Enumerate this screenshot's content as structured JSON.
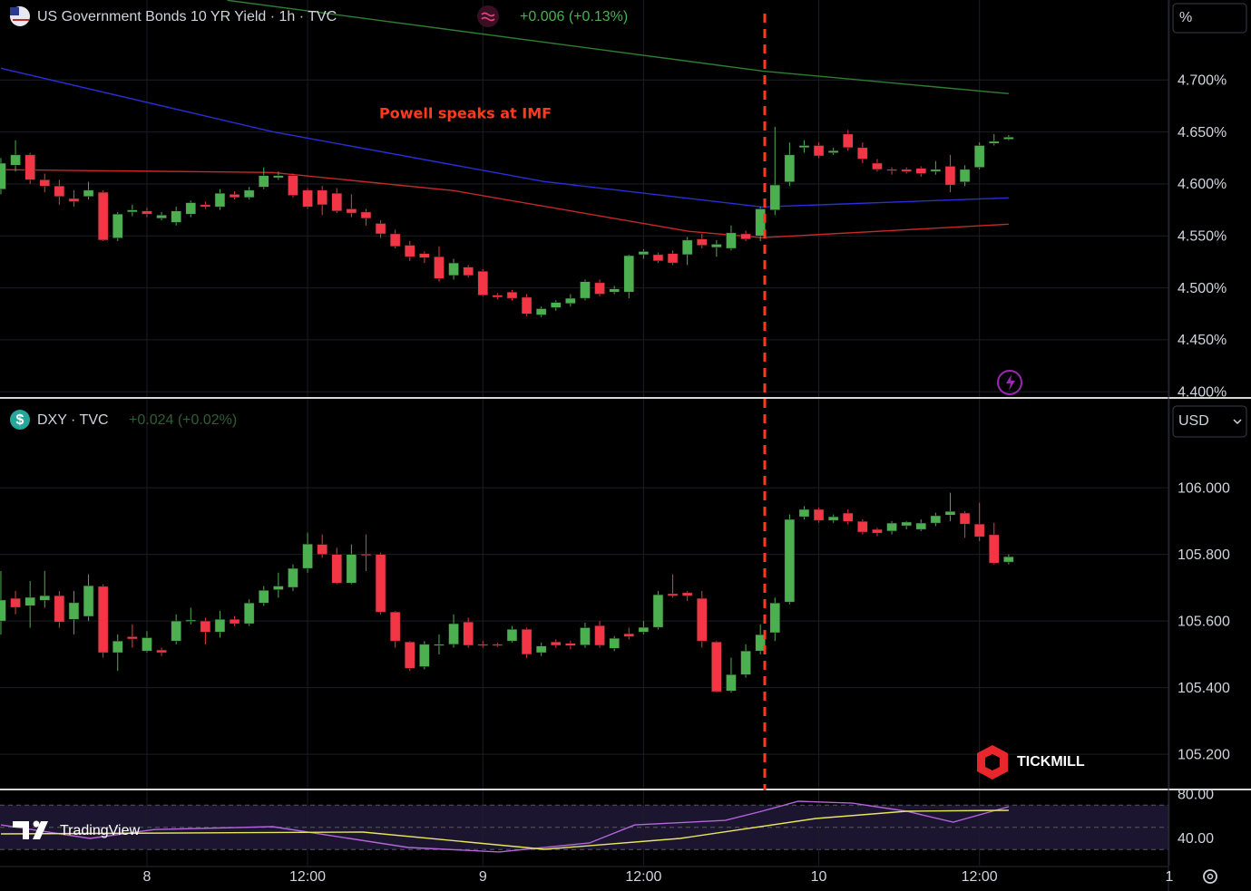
{
  "chart_data": [
    {
      "type": "candlestick",
      "title": "US Government Bonds 10 YR Yield · 1h · TVC",
      "change": "+0.006 (+0.13%)",
      "scale_unit": "%",
      "annotation": {
        "text": "Powell speaks at IMF",
        "x": 42.3,
        "color": "#ff3b1f"
      },
      "up_color": "#4caf50",
      "down_color": "#f23645",
      "grid": true,
      "xlim": [
        -10.06,
        69.94
      ],
      "ylim": [
        4.395,
        4.777
      ],
      "yticks": [
        {
          "value": 4.7,
          "label": "4.700%"
        },
        {
          "value": 4.65,
          "label": "4.650%"
        },
        {
          "value": 4.6,
          "label": "4.600%"
        },
        {
          "value": 4.55,
          "label": "4.550%"
        },
        {
          "value": 4.5,
          "label": "4.500%"
        },
        {
          "value": 4.45,
          "label": "4.450%"
        },
        {
          "value": 4.4,
          "label": "4.400%"
        }
      ],
      "x": [
        -10,
        -9,
        -8,
        -7,
        -6,
        -5,
        -4,
        -3,
        -2,
        -1,
        0,
        1,
        2,
        3,
        4,
        5,
        6,
        7,
        8,
        9,
        10,
        11,
        12,
        13,
        14,
        15,
        16,
        17,
        18,
        19,
        20,
        21,
        22,
        23,
        24,
        25,
        26,
        27,
        28,
        29,
        30,
        31,
        32,
        33,
        34,
        35,
        36,
        37,
        38,
        39,
        40,
        41,
        42,
        43,
        44,
        45,
        46,
        47,
        48,
        49,
        50,
        51,
        52,
        53,
        54,
        55,
        56,
        57,
        58,
        59
      ],
      "candles": [
        [
          4.595,
          4.625,
          4.59,
          4.62
        ],
        [
          4.618,
          4.642,
          4.612,
          4.628
        ],
        [
          4.628,
          4.63,
          4.6,
          4.604
        ],
        [
          4.604,
          4.61,
          4.592,
          4.598
        ],
        [
          4.598,
          4.604,
          4.58,
          4.588
        ],
        [
          4.586,
          4.594,
          4.578,
          4.583
        ],
        [
          4.588,
          4.602,
          4.585,
          4.594
        ],
        [
          4.592,
          4.594,
          4.545,
          4.546
        ],
        [
          4.548,
          4.573,
          4.545,
          4.571
        ],
        [
          4.573,
          4.58,
          4.569,
          4.575
        ],
        [
          4.574,
          4.577,
          4.568,
          4.571
        ],
        [
          4.567,
          4.573,
          4.565,
          4.57
        ],
        [
          4.563,
          4.578,
          4.56,
          4.574
        ],
        [
          4.571,
          4.584,
          4.568,
          4.582
        ],
        [
          4.58,
          4.583,
          4.576,
          4.578
        ],
        [
          4.578,
          4.595,
          4.575,
          4.591
        ],
        [
          4.59,
          4.593,
          4.585,
          4.587
        ],
        [
          4.587,
          4.597,
          4.585,
          4.594
        ],
        [
          4.597,
          4.616,
          4.595,
          4.608
        ],
        [
          4.606,
          4.612,
          4.604,
          4.608
        ],
        [
          4.608,
          4.61,
          4.587,
          4.589
        ],
        [
          4.594,
          4.596,
          4.576,
          4.578
        ],
        [
          4.594,
          4.598,
          4.57,
          4.58
        ],
        [
          4.591,
          4.596,
          4.572,
          4.574
        ],
        [
          4.576,
          4.59,
          4.568,
          4.572
        ],
        [
          4.573,
          4.576,
          4.56,
          4.567
        ],
        [
          4.562,
          4.565,
          4.548,
          4.552
        ],
        [
          4.552,
          4.556,
          4.538,
          4.54
        ],
        [
          4.541,
          4.545,
          4.526,
          4.53
        ],
        [
          4.533,
          4.535,
          4.524,
          4.529
        ],
        [
          4.53,
          4.54,
          4.506,
          4.509
        ],
        [
          4.512,
          4.528,
          4.508,
          4.524
        ],
        [
          4.52,
          4.522,
          4.51,
          4.512
        ],
        [
          4.516,
          4.518,
          4.492,
          4.493
        ],
        [
          4.493,
          4.495,
          4.489,
          4.491
        ],
        [
          4.496,
          4.498,
          4.488,
          4.49
        ],
        [
          4.491,
          4.494,
          4.473,
          4.475
        ],
        [
          4.474,
          4.482,
          4.472,
          4.48
        ],
        [
          4.481,
          4.488,
          4.478,
          4.486
        ],
        [
          4.485,
          4.494,
          4.482,
          4.49
        ],
        [
          4.49,
          4.508,
          4.488,
          4.506
        ],
        [
          4.505,
          4.508,
          4.492,
          4.494
        ],
        [
          4.496,
          4.502,
          4.494,
          4.499
        ],
        [
          4.496,
          4.532,
          4.49,
          4.531
        ],
        [
          4.532,
          4.537,
          4.528,
          4.535
        ],
        [
          4.532,
          4.534,
          4.524,
          4.526
        ],
        [
          4.533,
          4.536,
          4.522,
          4.524
        ],
        [
          4.532,
          4.549,
          4.522,
          4.546
        ],
        [
          4.547,
          4.552,
          4.538,
          4.541
        ],
        [
          4.539,
          4.546,
          4.53,
          4.542
        ],
        [
          4.538,
          4.56,
          4.536,
          4.553
        ],
        [
          4.552,
          4.555,
          4.545,
          4.547
        ],
        [
          4.55,
          4.578,
          4.545,
          4.576
        ],
        [
          4.575,
          4.655,
          4.57,
          4.599
        ],
        [
          4.602,
          4.64,
          4.598,
          4.628
        ],
        [
          4.635,
          4.642,
          4.63,
          4.637
        ],
        [
          4.637,
          4.64,
          4.625,
          4.627
        ],
        [
          4.63,
          4.635,
          4.628,
          4.632
        ],
        [
          4.648,
          4.652,
          4.632,
          4.635
        ],
        [
          4.635,
          4.64,
          4.62,
          4.624
        ],
        [
          4.62,
          4.624,
          4.612,
          4.614
        ],
        [
          4.614,
          4.616,
          4.609,
          4.613
        ],
        [
          4.614,
          4.616,
          4.61,
          4.612
        ],
        [
          4.615,
          4.617,
          4.607,
          4.61
        ],
        [
          4.612,
          4.622,
          4.609,
          4.614
        ],
        [
          4.617,
          4.628,
          4.592,
          4.599
        ],
        [
          4.602,
          4.618,
          4.598,
          4.614
        ],
        [
          4.616,
          4.64,
          4.614,
          4.637
        ],
        [
          4.639,
          4.648,
          4.637,
          4.641
        ],
        [
          4.643,
          4.647,
          4.642,
          4.645
        ]
      ],
      "lines": [
        {
          "color": "#2a2ed6",
          "x": [
            -10,
            8.6,
            27.2,
            42.1,
            59
          ],
          "values": [
            4.7113,
            4.6503,
            4.6023,
            4.5779,
            4.5866
          ]
        },
        {
          "color": "#c62828",
          "x": [
            -10,
            8.6,
            21,
            37.1,
            42.1,
            59
          ],
          "values": [
            4.6137,
            4.611,
            4.5936,
            4.5544,
            4.5483,
            4.5613
          ]
        },
        {
          "color": "#2e7d32",
          "x": [
            5.5,
            42.1,
            59
          ],
          "values": [
            4.7767,
            4.7087,
            4.6869
          ]
        }
      ]
    },
    {
      "type": "candlestick",
      "title": "DXY · TVC",
      "change": "+0.024 (+0.02%)",
      "scale_unit": "USD",
      "up_color": "#4caf50",
      "down_color": "#f23645",
      "grid": true,
      "brand": "TICKMILL",
      "xlim": [
        -10.06,
        69.94
      ],
      "ylim": [
        105.097,
        106.267
      ],
      "yticks": [
        {
          "value": 106,
          "label": "106.000"
        },
        {
          "value": 105.8,
          "label": "105.800"
        },
        {
          "value": 105.6,
          "label": "105.600"
        },
        {
          "value": 105.4,
          "label": "105.400"
        },
        {
          "value": 105.2,
          "label": "105.200"
        }
      ],
      "x": [
        -10,
        -9,
        -8,
        -7,
        -6,
        -5,
        -4,
        -3,
        -2,
        -1,
        0,
        1,
        2,
        3,
        4,
        5,
        6,
        7,
        8,
        9,
        10,
        11,
        12,
        13,
        14,
        15,
        16,
        17,
        18,
        19,
        20,
        21,
        22,
        23,
        24,
        25,
        26,
        27,
        28,
        29,
        30,
        31,
        32,
        33,
        34,
        35,
        36,
        37,
        38,
        39,
        40,
        41,
        42,
        43,
        44,
        45,
        46,
        47,
        48,
        49,
        50,
        51,
        52,
        53,
        54,
        55,
        56,
        57,
        58,
        59
      ],
      "candles": [
        [
          105.6,
          105.75,
          105.559,
          105.663
        ],
        [
          105.668,
          105.69,
          105.62,
          105.641
        ],
        [
          105.646,
          105.72,
          105.58,
          105.671
        ],
        [
          105.662,
          105.75,
          105.64,
          105.676
        ],
        [
          105.676,
          105.69,
          105.58,
          105.597
        ],
        [
          105.605,
          105.69,
          105.56,
          105.655
        ],
        [
          105.614,
          105.74,
          105.6,
          105.706
        ],
        [
          105.704,
          105.71,
          105.49,
          105.505
        ],
        [
          105.505,
          105.56,
          105.45,
          105.54
        ],
        [
          105.553,
          105.59,
          105.52,
          105.546
        ],
        [
          105.51,
          105.57,
          105.505,
          105.55
        ],
        [
          105.513,
          105.52,
          105.495,
          105.505
        ],
        [
          105.54,
          105.62,
          105.53,
          105.6
        ],
        [
          105.6,
          105.64,
          105.59,
          105.603
        ],
        [
          105.6,
          105.61,
          105.53,
          105.567
        ],
        [
          105.567,
          105.63,
          105.55,
          105.605
        ],
        [
          105.605,
          105.615,
          105.585,
          105.592
        ],
        [
          105.592,
          105.665,
          105.585,
          105.654
        ],
        [
          105.654,
          105.705,
          105.645,
          105.692
        ],
        [
          105.694,
          105.745,
          105.67,
          105.705
        ],
        [
          105.701,
          105.77,
          105.69,
          105.758
        ],
        [
          105.758,
          105.865,
          105.745,
          105.831
        ],
        [
          105.83,
          105.86,
          105.79,
          105.8
        ],
        [
          105.8,
          105.82,
          105.71,
          105.714
        ],
        [
          105.714,
          105.83,
          105.71,
          105.8
        ],
        [
          105.801,
          105.86,
          105.75,
          105.799
        ],
        [
          105.8,
          105.805,
          105.62,
          105.627
        ],
        [
          105.627,
          105.63,
          105.52,
          105.54
        ],
        [
          105.537,
          105.54,
          105.45,
          105.458
        ],
        [
          105.463,
          105.54,
          105.455,
          105.53
        ],
        [
          105.528,
          105.56,
          105.5,
          105.53
        ],
        [
          105.53,
          105.62,
          105.52,
          105.592
        ],
        [
          105.597,
          105.61,
          105.52,
          105.527
        ],
        [
          105.53,
          105.54,
          105.52,
          105.527
        ],
        [
          105.53,
          105.535,
          105.522,
          105.526
        ],
        [
          105.54,
          105.585,
          105.535,
          105.575
        ],
        [
          105.575,
          105.58,
          105.49,
          105.5
        ],
        [
          105.505,
          105.535,
          105.495,
          105.525
        ],
        [
          105.537,
          105.545,
          105.52,
          105.527
        ],
        [
          105.533,
          105.54,
          105.515,
          105.526
        ],
        [
          105.528,
          105.595,
          105.52,
          105.58
        ],
        [
          105.586,
          105.6,
          105.52,
          105.527
        ],
        [
          105.518,
          105.555,
          105.51,
          105.548
        ],
        [
          105.562,
          105.58,
          105.545,
          105.553
        ],
        [
          105.567,
          105.6,
          105.56,
          105.581
        ],
        [
          105.581,
          105.69,
          105.575,
          105.679
        ],
        [
          105.682,
          105.74,
          105.67,
          105.676
        ],
        [
          105.685,
          105.69,
          105.66,
          105.676
        ],
        [
          105.668,
          105.69,
          105.52,
          105.54
        ],
        [
          105.537,
          105.54,
          105.385,
          105.388
        ],
        [
          105.39,
          105.49,
          105.385,
          105.439
        ],
        [
          105.439,
          105.53,
          105.43,
          105.51
        ],
        [
          105.51,
          105.59,
          105.5,
          105.559
        ],
        [
          105.565,
          105.67,
          105.54,
          105.654
        ],
        [
          105.657,
          105.92,
          105.65,
          105.905
        ],
        [
          105.913,
          105.945,
          105.905,
          105.935
        ],
        [
          105.935,
          105.94,
          105.895,
          105.902
        ],
        [
          105.902,
          105.92,
          105.895,
          105.913
        ],
        [
          105.924,
          105.935,
          105.89,
          105.899
        ],
        [
          105.899,
          105.905,
          105.86,
          105.867
        ],
        [
          105.875,
          105.88,
          105.855,
          105.864
        ],
        [
          105.87,
          105.9,
          105.86,
          105.894
        ],
        [
          105.886,
          105.9,
          105.875,
          105.897
        ],
        [
          105.875,
          105.905,
          105.87,
          105.894
        ],
        [
          105.894,
          105.925,
          105.885,
          105.916
        ],
        [
          105.918,
          105.985,
          105.9,
          105.929
        ],
        [
          105.924,
          105.93,
          105.85,
          105.891
        ],
        [
          105.891,
          105.955,
          105.84,
          105.853
        ],
        [
          105.859,
          105.895,
          105.77,
          105.774
        ],
        [
          105.777,
          105.8,
          105.77,
          105.793
        ]
      ],
      "lines": []
    },
    {
      "type": "line",
      "brand": "TradingView",
      "grid": true,
      "xlim": [
        -10.06,
        69.94
      ],
      "ylim": [
        15.5,
        83.3
      ],
      "xticks": [
        {
          "value": 0,
          "label": "8"
        },
        {
          "value": 11,
          "label": "12:00"
        },
        {
          "value": 23,
          "label": "9"
        },
        {
          "value": 34,
          "label": "12:00"
        },
        {
          "value": 46,
          "label": "10"
        },
        {
          "value": 57,
          "label": "12:00"
        },
        {
          "value": 70,
          "label": "1"
        }
      ],
      "yticks": [
        {
          "value": 80,
          "label": "80.00"
        },
        {
          "value": 40,
          "label": "40.00"
        }
      ],
      "levels": [
        70,
        50,
        30
      ],
      "band_color": "#1c1530",
      "lines": [
        {
          "color": "#b266d9",
          "x": [
            -10,
            -3.9,
            0.5,
            8.6,
            17.9,
            24.1,
            30.3,
            33.4,
            39.6,
            42.1,
            44.6,
            48.3,
            52,
            55.2,
            59
          ],
          "values": [
            52.2,
            40,
            48,
            50.6,
            31.8,
            27.8,
            35.9,
            52.2,
            56.3,
            64.5,
            73.5,
            71.8,
            64.5,
            54.7,
            68.6
          ]
        },
        {
          "color": "#e6e65c",
          "x": [
            -10,
            14.8,
            27.2,
            36.5,
            45.8,
            52,
            59
          ],
          "values": [
            44.1,
            45.7,
            30.2,
            40,
            58,
            64.5,
            65.3
          ]
        }
      ]
    }
  ]
}
